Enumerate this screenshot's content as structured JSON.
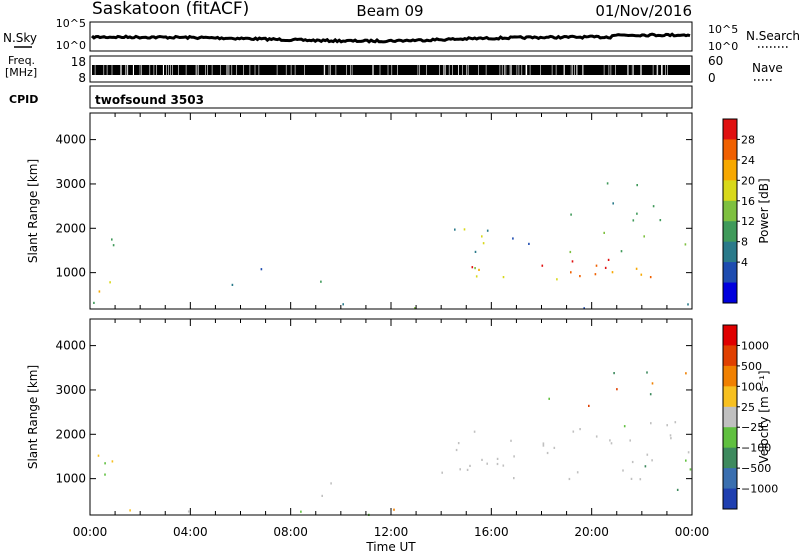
{
  "header": {
    "station": "Saskatoon (fitACF)",
    "beam": "Beam 09",
    "date": "01/Nov/2016"
  },
  "strip_panels": {
    "noise": {
      "left_label": "N.Sky",
      "left_ticks": [
        "10^5",
        "10^0"
      ],
      "right_ticks": [
        "10^5",
        "10^0"
      ],
      "right_label": "N.Search",
      "right_style": "dotted"
    },
    "freq": {
      "left_label_lines": [
        "Freq.",
        "[MHz]"
      ],
      "left_ticks": [
        "18",
        "8"
      ],
      "right_ticks": [
        "60",
        "0"
      ],
      "right_label": "Nave",
      "right_style": "dotted"
    },
    "cpid": {
      "left_label": "CPID",
      "program": "twofsound 3503"
    }
  },
  "chart_data": [
    {
      "type": "heatmap",
      "name": "power",
      "ylabel": "Slant Range [km]",
      "ylim": [
        180,
        4600
      ],
      "y_ticks": [
        1000,
        2000,
        3000,
        4000
      ],
      "x_ticks": [
        "00:00",
        "04:00",
        "08:00",
        "12:00",
        "16:00",
        "20:00",
        "00:00"
      ],
      "colorbar": {
        "label": "Power [dB]",
        "tick_labels": [
          "28",
          "24",
          "20",
          "16",
          "12",
          "8",
          "4"
        ],
        "colors": [
          "#0000dd",
          "#1e4cb0",
          "#2a7a8a",
          "#3f9a5a",
          "#7ec040",
          "#d8d81a",
          "#f7a800",
          "#f06000",
          "#e01010"
        ]
      }
    },
    {
      "type": "heatmap",
      "name": "velocity",
      "ylabel": "Slant Range [km]",
      "ylim": [
        180,
        4600
      ],
      "y_ticks": [
        1000,
        2000,
        3000,
        4000
      ],
      "x_ticks": [
        "00:00",
        "04:00",
        "08:00",
        "12:00",
        "16:00",
        "20:00",
        "00:00"
      ],
      "xlabel": "Time UT",
      "colorbar": {
        "label": "Velocity [m s⁻¹]",
        "tick_labels": [
          "1000",
          "500",
          "100",
          "25",
          "−25",
          "−100",
          "−500",
          "−1000"
        ],
        "colors": [
          "#1f3fb0",
          "#3a6fb0",
          "#3e8a5e",
          "#60c040",
          "#c0c0c0",
          "#f7c020",
          "#f08000",
          "#e04000",
          "#e00000"
        ]
      }
    }
  ]
}
